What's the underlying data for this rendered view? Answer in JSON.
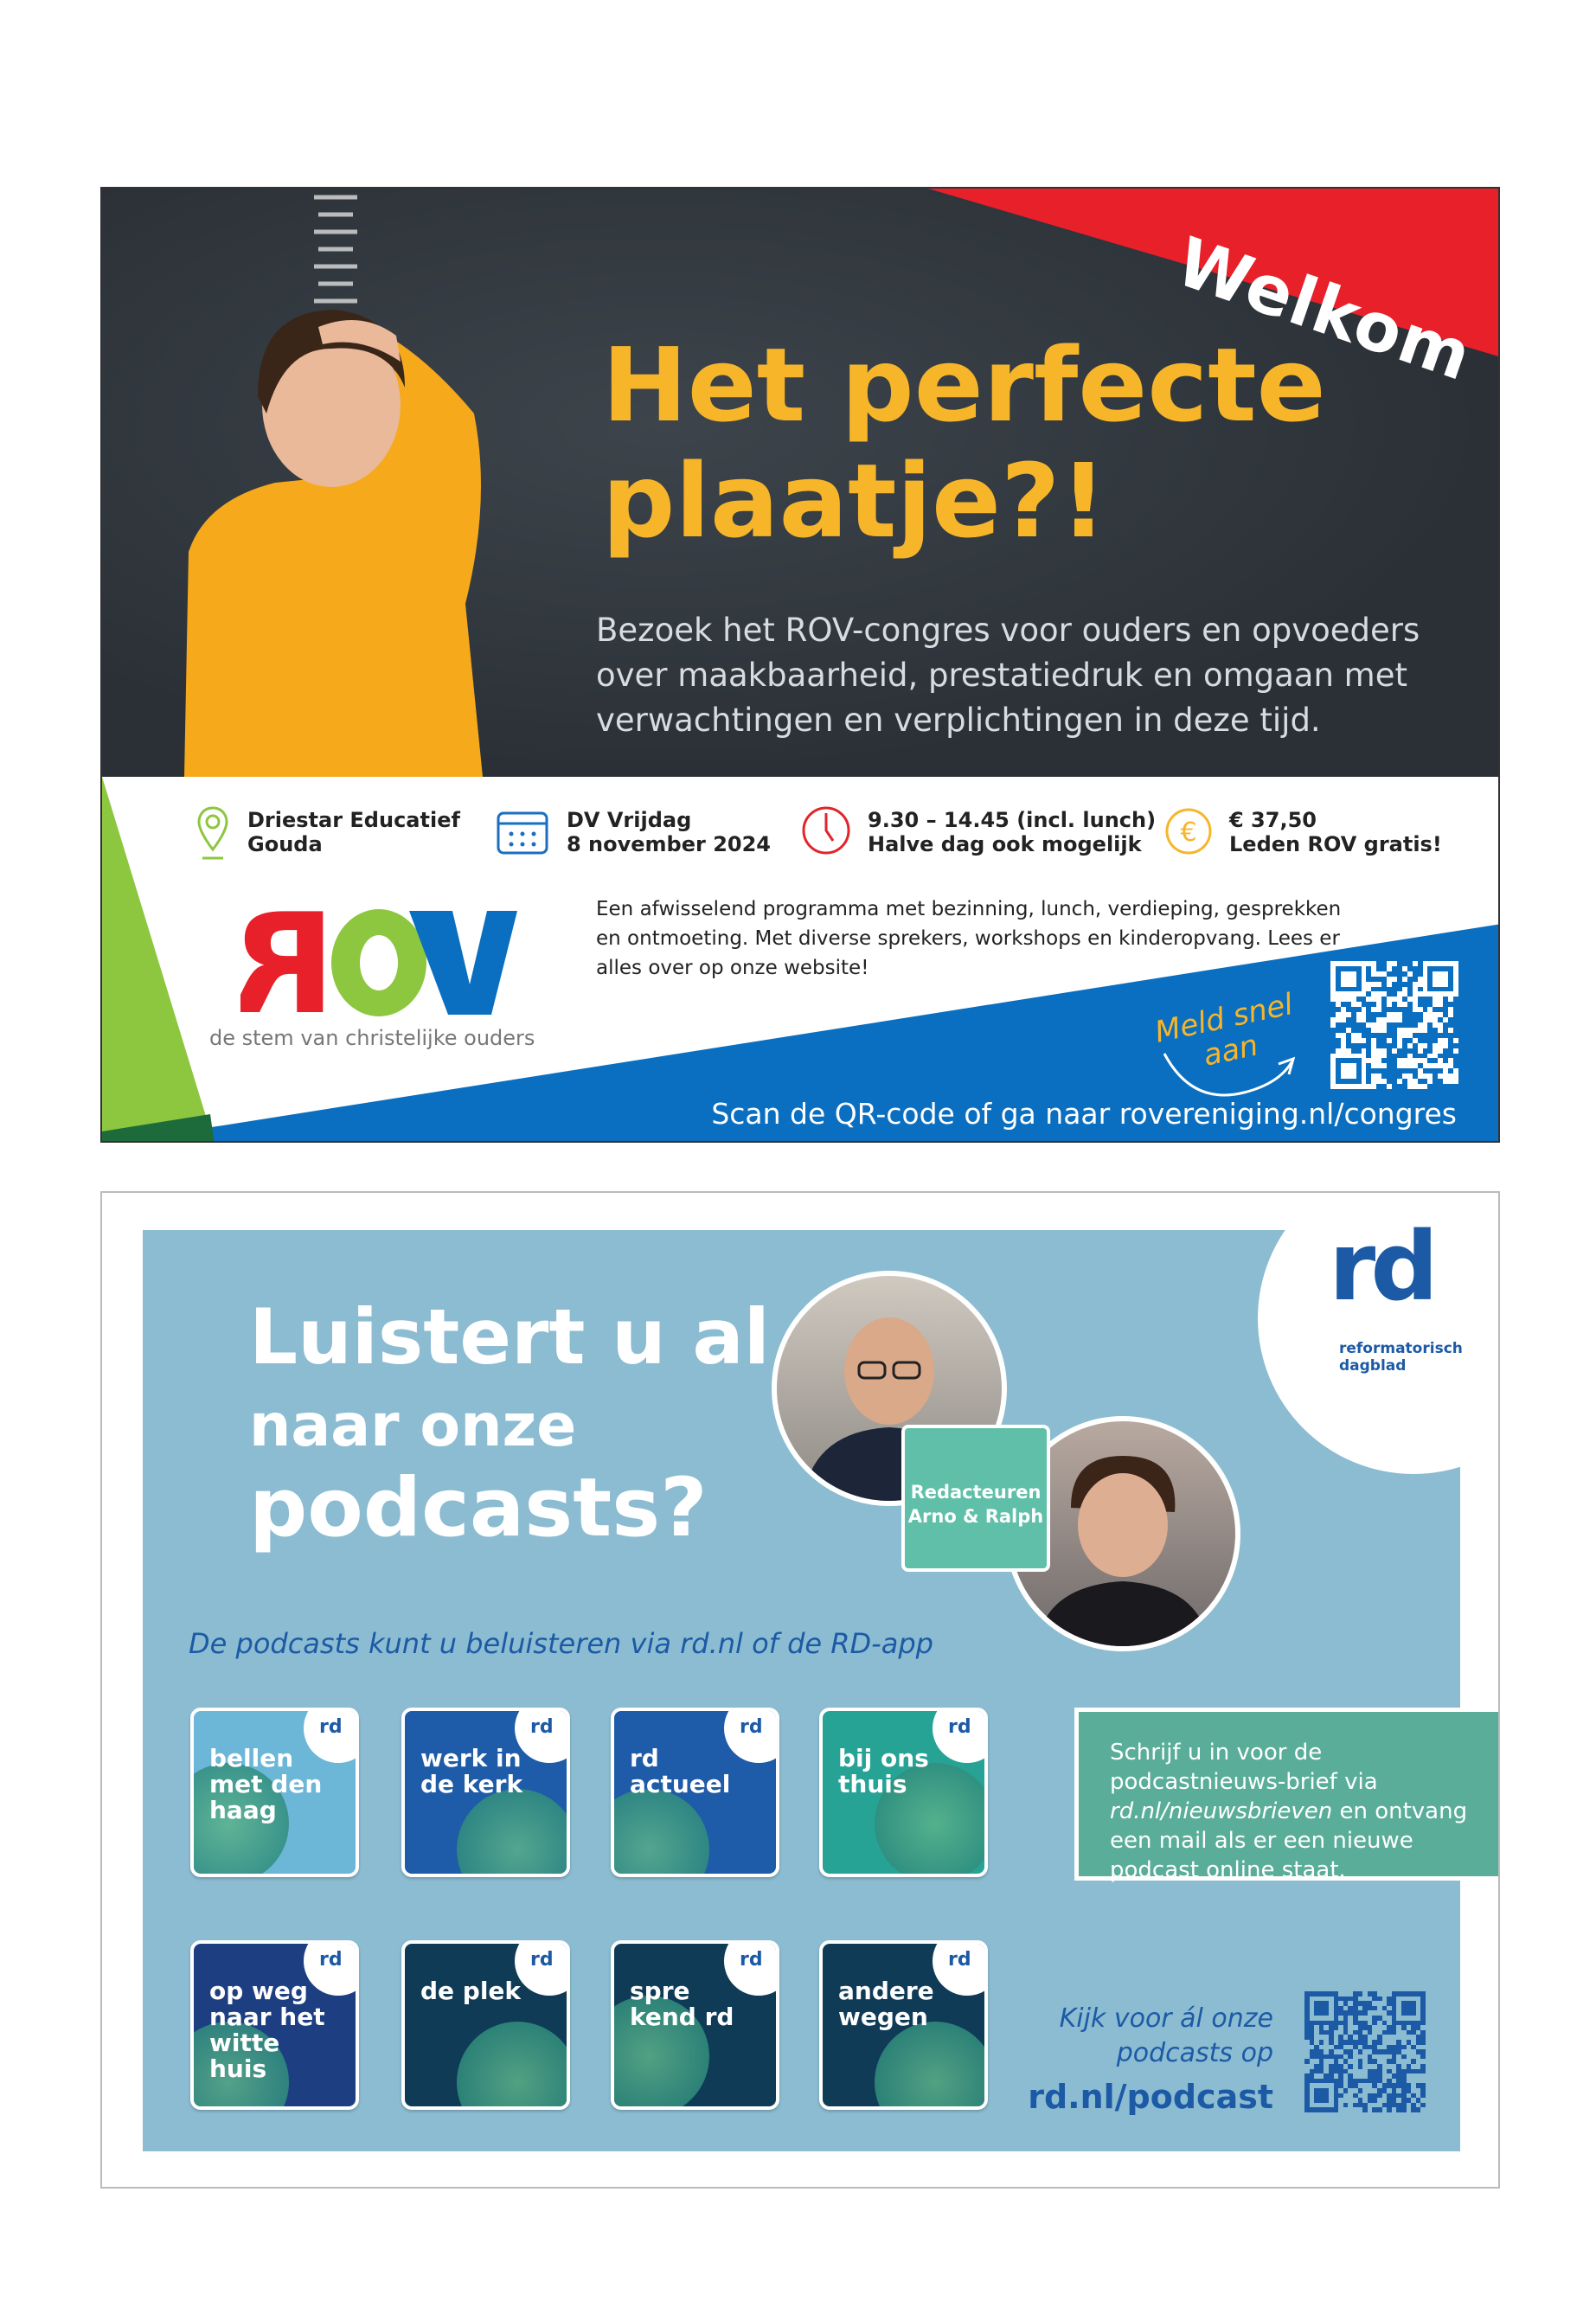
{
  "rov_ad": {
    "banner": "Welkom",
    "headline": [
      "Het perfecte",
      "plaatje?!"
    ],
    "body": "Bezoek het ROV-congres voor ouders en opvoeders over maakbaarheid, prestatiedruk en omgaan met verwachtingen en verplichtingen in deze tijd.",
    "info": [
      {
        "icon": "location-pin-icon",
        "line1": "Driestar Educatief",
        "line2": "Gouda",
        "color": "#8dc63f"
      },
      {
        "icon": "calendar-icon",
        "line1": "DV Vrijdag",
        "line2": "8 november 2024",
        "color": "#1a6fc1"
      },
      {
        "icon": "clock-icon",
        "line1": "9.30 – 14.45 (incl. lunch)",
        "line2": "Halve dag ook mogelijk",
        "color": "#e3242b"
      },
      {
        "icon": "euro-icon",
        "line1": "€ 37,50",
        "line2": "Leden ROV gratis!",
        "color": "#f7b52a"
      }
    ],
    "logo": "ROV",
    "tagline": "de stem van christelijke ouders",
    "description": "Een afwisselend programma met bezinning, lunch, verdieping, gesprekken en ontmoeting. Met diverse sprekers, workshops en kinderopvang. Lees er alles over op onze website!",
    "cta": [
      "Meld snel",
      "aan"
    ],
    "scan": "Scan de QR-code of ga naar rovereniging.nl/congres",
    "colors": {
      "board": "#2e343b",
      "yellow": "#f7b52a",
      "red": "#e8202a",
      "blue": "#0a6fc0",
      "green": "#8dc63f"
    }
  },
  "rd_ad": {
    "headline": [
      "Luistert u al",
      "naar onze",
      "podcasts?"
    ],
    "logo": {
      "mark": "rd",
      "line1": "reformatorisch",
      "line2": "dagblad"
    },
    "editors": [
      "Redacteuren",
      "Arno & Ralph"
    ],
    "subtitle": "De podcasts kunt u beluisteren via rd.nl of de RD-app",
    "podcasts": [
      {
        "title": "bellen met den haag",
        "color": "#6cb6d8"
      },
      {
        "title": "werk in de kerk",
        "color": "#1e5ba8"
      },
      {
        "title": "rd actueel",
        "color": "#1e5ba8"
      },
      {
        "title": "bij ons thuis",
        "color": "#27a396"
      },
      {
        "title": "op weg naar het witte huis",
        "color": "#1d3f82"
      },
      {
        "title": "de plek",
        "color": "#0f3b57"
      },
      {
        "title": "spre kend rd",
        "color": "#0f3b57"
      },
      {
        "title": "andere wegen",
        "color": "#0f3b57"
      }
    ],
    "tile_badge": "rd",
    "newsletter": {
      "pre": "Schrijf u in voor de podcastnieuws-brief via ",
      "link": "rd.nl/nieuwsbrieven",
      "post": " en ontvang een mail als er een nieuwe podcast online staat."
    },
    "more": [
      "Kijk voor ál onze",
      "podcasts op"
    ],
    "url": "rd.nl/podcast",
    "colors": {
      "panel": "#8bbcd1",
      "blue": "#1d5aa6",
      "green": "#5aae99"
    }
  }
}
